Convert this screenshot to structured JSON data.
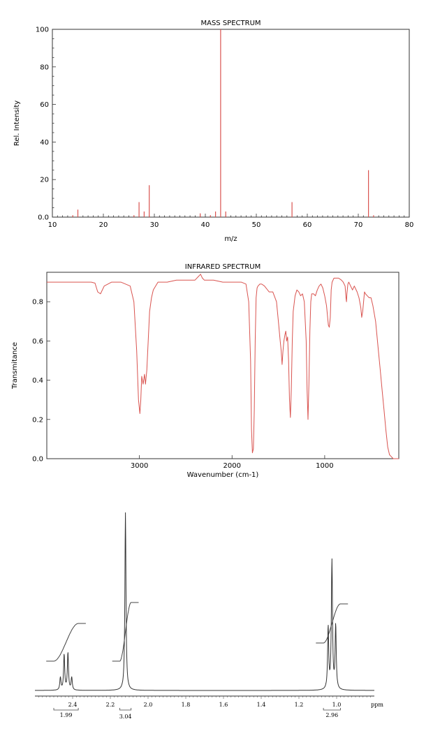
{
  "chart_data": [
    {
      "type": "bar",
      "title": "MASS SPECTRUM",
      "xlabel": "m/z",
      "ylabel": "Rel. Intensity",
      "xlim": [
        10,
        80
      ],
      "ylim": [
        0,
        100
      ],
      "xticks": [
        10,
        20,
        30,
        40,
        50,
        60,
        70,
        80
      ],
      "yticks": [
        0,
        20,
        40,
        60,
        80,
        100
      ],
      "tick_labels_x": [
        "10",
        "20",
        "30",
        "40",
        "50",
        "60",
        "70",
        "80"
      ],
      "tick_labels_y": [
        "0.0",
        "20",
        "40",
        "60",
        "80",
        "100"
      ],
      "peaks": [
        {
          "x": 14,
          "y": 1
        },
        {
          "x": 15,
          "y": 4
        },
        {
          "x": 26,
          "y": 1
        },
        {
          "x": 27,
          "y": 8
        },
        {
          "x": 28,
          "y": 3
        },
        {
          "x": 29,
          "y": 17
        },
        {
          "x": 39,
          "y": 2
        },
        {
          "x": 41,
          "y": 1
        },
        {
          "x": 42,
          "y": 3
        },
        {
          "x": 43,
          "y": 100
        },
        {
          "x": 44,
          "y": 3
        },
        {
          "x": 57,
          "y": 8
        },
        {
          "x": 72,
          "y": 25
        },
        {
          "x": 73,
          "y": 1
        }
      ],
      "color": "#d9534f"
    },
    {
      "type": "line",
      "title": "INFRARED SPECTRUM",
      "xlabel": "Wavenumber (cm-1)",
      "ylabel": "Transmitance",
      "xlim": [
        4000,
        200
      ],
      "ylim": [
        0,
        0.95
      ],
      "xticks": [
        3000,
        2000,
        1000
      ],
      "yticks": [
        0.0,
        0.2,
        0.4,
        0.6,
        0.8
      ],
      "tick_labels_x": [
        "3000",
        "2000",
        "1000"
      ],
      "tick_labels_y": [
        "0.0",
        "0.2",
        "0.4",
        "0.6",
        "0.8"
      ],
      "series": [
        {
          "x": [
            4000,
            3800,
            3600,
            3520,
            3480,
            3450,
            3420,
            3380,
            3300,
            3200,
            3100,
            3060,
            3030,
            3010,
            2995,
            2985,
            2975,
            2960,
            2945,
            2935,
            2920,
            2905,
            2890,
            2870,
            2850,
            2800,
            2700,
            2600,
            2500,
            2400,
            2360,
            2340,
            2320,
            2300,
            2200,
            2100,
            2000,
            1900,
            1850,
            1820,
            1800,
            1790,
            1780,
            1770,
            1760,
            1750,
            1740,
            1730,
            1720,
            1700,
            1680,
            1650,
            1600,
            1560,
            1520,
            1500,
            1480,
            1470,
            1460,
            1450,
            1440,
            1430,
            1420,
            1410,
            1400,
            1390,
            1380,
            1370,
            1360,
            1350,
            1340,
            1320,
            1300,
            1280,
            1260,
            1240,
            1220,
            1200,
            1190,
            1180,
            1170,
            1160,
            1150,
            1140,
            1120,
            1100,
            1080,
            1060,
            1040,
            1020,
            1000,
            980,
            960,
            950,
            940,
            930,
            920,
            900,
            880,
            850,
            820,
            800,
            780,
            770,
            765,
            760,
            750,
            740,
            720,
            700,
            680,
            650,
            630,
            610,
            600,
            590,
            580,
            570,
            560,
            540,
            520,
            500,
            480,
            450,
            420,
            400,
            380,
            360,
            340,
            320,
            300,
            280,
            260,
            240,
            220,
            200
          ],
          "y": [
            0.9,
            0.9,
            0.9,
            0.9,
            0.895,
            0.85,
            0.84,
            0.88,
            0.9,
            0.9,
            0.88,
            0.8,
            0.55,
            0.3,
            0.23,
            0.3,
            0.42,
            0.38,
            0.43,
            0.38,
            0.45,
            0.6,
            0.75,
            0.82,
            0.86,
            0.9,
            0.9,
            0.91,
            0.91,
            0.91,
            0.93,
            0.94,
            0.92,
            0.91,
            0.91,
            0.9,
            0.9,
            0.9,
            0.89,
            0.8,
            0.5,
            0.15,
            0.03,
            0.05,
            0.25,
            0.6,
            0.82,
            0.87,
            0.88,
            0.89,
            0.89,
            0.88,
            0.85,
            0.85,
            0.8,
            0.7,
            0.6,
            0.55,
            0.48,
            0.55,
            0.6,
            0.63,
            0.65,
            0.6,
            0.62,
            0.5,
            0.3,
            0.21,
            0.35,
            0.6,
            0.75,
            0.83,
            0.86,
            0.85,
            0.83,
            0.84,
            0.8,
            0.6,
            0.35,
            0.2,
            0.38,
            0.65,
            0.8,
            0.84,
            0.84,
            0.83,
            0.86,
            0.88,
            0.89,
            0.87,
            0.83,
            0.78,
            0.68,
            0.67,
            0.72,
            0.86,
            0.9,
            0.92,
            0.92,
            0.92,
            0.91,
            0.9,
            0.88,
            0.82,
            0.8,
            0.84,
            0.89,
            0.9,
            0.88,
            0.86,
            0.88,
            0.85,
            0.82,
            0.77,
            0.72,
            0.75,
            0.8,
            0.85,
            0.84,
            0.83,
            0.82,
            0.82,
            0.78,
            0.7,
            0.55,
            0.45,
            0.35,
            0.25,
            0.15,
            0.06,
            0.02,
            0.01,
            0.0,
            0.0,
            0.0,
            0.0
          ]
        }
      ],
      "color": "#d9534f"
    },
    {
      "type": "line",
      "title": "",
      "xlabel": "ppm",
      "xlim": [
        2.6,
        0.8
      ],
      "xticks": [
        2.4,
        2.2,
        2.0,
        1.8,
        1.6,
        1.4,
        1.2,
        1.0
      ],
      "tick_labels_x": [
        "2.4",
        "2.2",
        "2.0",
        "1.8",
        "1.6",
        "1.4",
        "1.2",
        "1.0"
      ],
      "peaks": [
        {
          "ppm": 2.465,
          "h": 0.07
        },
        {
          "ppm": 2.445,
          "h": 0.2
        },
        {
          "ppm": 2.425,
          "h": 0.21
        },
        {
          "ppm": 2.405,
          "h": 0.07
        },
        {
          "ppm": 2.12,
          "h": 1.0
        },
        {
          "ppm": 1.045,
          "h": 0.35
        },
        {
          "ppm": 1.025,
          "h": 0.72
        },
        {
          "ppm": 1.005,
          "h": 0.36
        }
      ],
      "integrations": [
        {
          "label": "1.99",
          "from": 2.5,
          "to": 2.37
        },
        {
          "label": "3.04",
          "from": 2.15,
          "to": 2.09
        },
        {
          "label": "2.96",
          "from": 1.07,
          "to": 0.98
        }
      ],
      "color": "#333333"
    }
  ]
}
